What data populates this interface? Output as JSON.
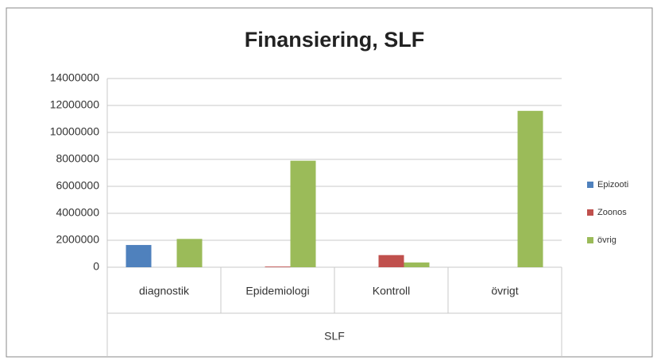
{
  "chart_data": {
    "type": "bar",
    "title": "Finansiering, SLF",
    "categories": [
      "diagnostik",
      "Epidemiologi",
      "Kontroll",
      "övrigt"
    ],
    "group_label": "SLF",
    "series": [
      {
        "name": "Epizooti",
        "color": "#4f81bd",
        "values": [
          1650000,
          0,
          0,
          0
        ]
      },
      {
        "name": "Zoonos",
        "color": "#c0504d",
        "values": [
          0,
          50000,
          900000,
          0
        ]
      },
      {
        "name": "övrig",
        "color": "#9bbb59",
        "values": [
          2100000,
          7900000,
          350000,
          11600000
        ]
      }
    ],
    "ylim": [
      0,
      14000000
    ],
    "yticks": [
      0,
      2000000,
      4000000,
      6000000,
      8000000,
      10000000,
      12000000,
      14000000
    ],
    "grid": true,
    "legend": "right"
  }
}
